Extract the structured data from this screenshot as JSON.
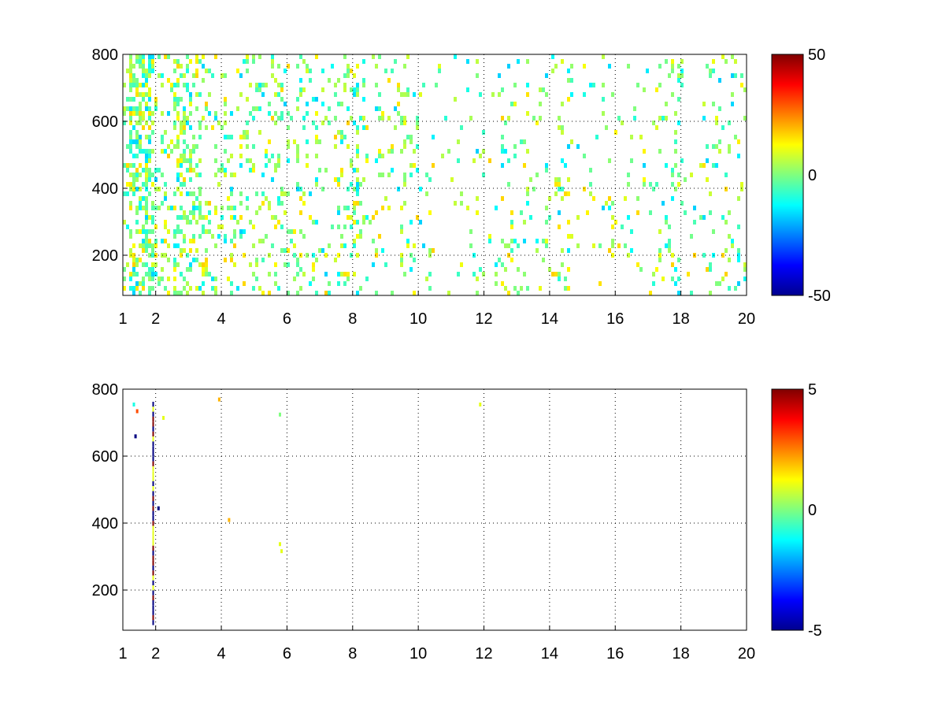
{
  "chart_data": [
    {
      "type": "heatmap",
      "title": "",
      "xlabel": "",
      "ylabel": "",
      "xlim": [
        1,
        20
      ],
      "ylim": [
        80,
        800
      ],
      "x_ticks": [
        1,
        2,
        4,
        6,
        8,
        10,
        12,
        14,
        16,
        18,
        20
      ],
      "y_ticks": [
        200,
        400,
        600,
        800
      ],
      "grid": true,
      "colormap": "jet",
      "colorbar": {
        "min": -50,
        "max": 50,
        "ticks": [
          50,
          0,
          -50
        ]
      },
      "background": "#ffffff",
      "description": "Sparse heatmap; points scattered across frequencies 1-20, denser near low x, mostly values near 0 (green/cyan/yellow)"
    },
    {
      "type": "heatmap",
      "title": "",
      "xlabel": "",
      "ylabel": "",
      "xlim": [
        1,
        20
      ],
      "ylim": [
        80,
        800
      ],
      "x_ticks": [
        1,
        2,
        4,
        6,
        8,
        10,
        12,
        14,
        16,
        18,
        20
      ],
      "y_ticks": [
        200,
        400,
        600,
        800
      ],
      "grid": true,
      "colormap": "jet",
      "colorbar": {
        "min": -5,
        "max": 5,
        "ticks": [
          5,
          0,
          -5
        ]
      },
      "background": "#ffffff",
      "description": "Nearly empty heatmap; strong values concentrated in a vertical line near x≈1.9"
    }
  ]
}
